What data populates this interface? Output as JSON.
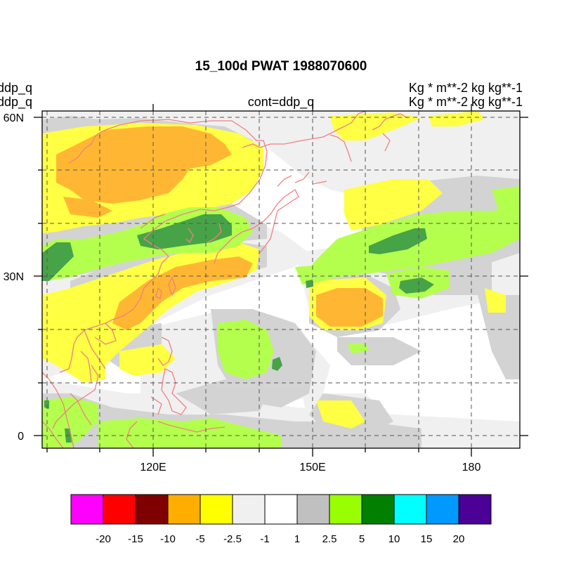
{
  "title": "15_100d PWAT  1988070600",
  "left_label_1": "ddp_q",
  "left_label_2": "ddp_q",
  "center_label": "cont=ddp_q",
  "right_label_1": "Kg   * m**-2 kg kg**-1",
  "right_label_2": "Kg   * m**-2 kg kg**-1",
  "lat_ticks": [
    {
      "label": "60N",
      "lat": 60
    },
    {
      "label": "30N",
      "lat": 30
    },
    {
      "label": "0",
      "lat": 0
    }
  ],
  "lon_ticks": [
    {
      "label": "120E",
      "lon": 120
    },
    {
      "label": "150E",
      "lon": 150
    },
    {
      "label": "180",
      "lon": 180
    }
  ],
  "map_extent": {
    "lon_min": 100,
    "lon_max": 187,
    "lat_min": -2,
    "lat_max": 62
  },
  "colorbar": {
    "colors": [
      "#ff00ff",
      "#ff0000",
      "#7f0000",
      "#ffae00",
      "#ffff00",
      "#f0f0f0",
      "#ffffff",
      "#c0c0c0",
      "#99ff00",
      "#007f00",
      "#00ffff",
      "#0099ff",
      "#4b0096"
    ],
    "labels": [
      "-20",
      "-15",
      "-10",
      "-5",
      "-2.5",
      "-1",
      "1",
      "2.5",
      "5",
      "10",
      "15",
      "20"
    ]
  },
  "fill_colors": {
    "light": "#f0f0f0",
    "gray": "#d3d3d3",
    "yellow": "#ffff44",
    "orange": "#ffb733",
    "lightgreen": "#b4ff4e",
    "green": "#47a347",
    "coast": "#f08080"
  }
}
